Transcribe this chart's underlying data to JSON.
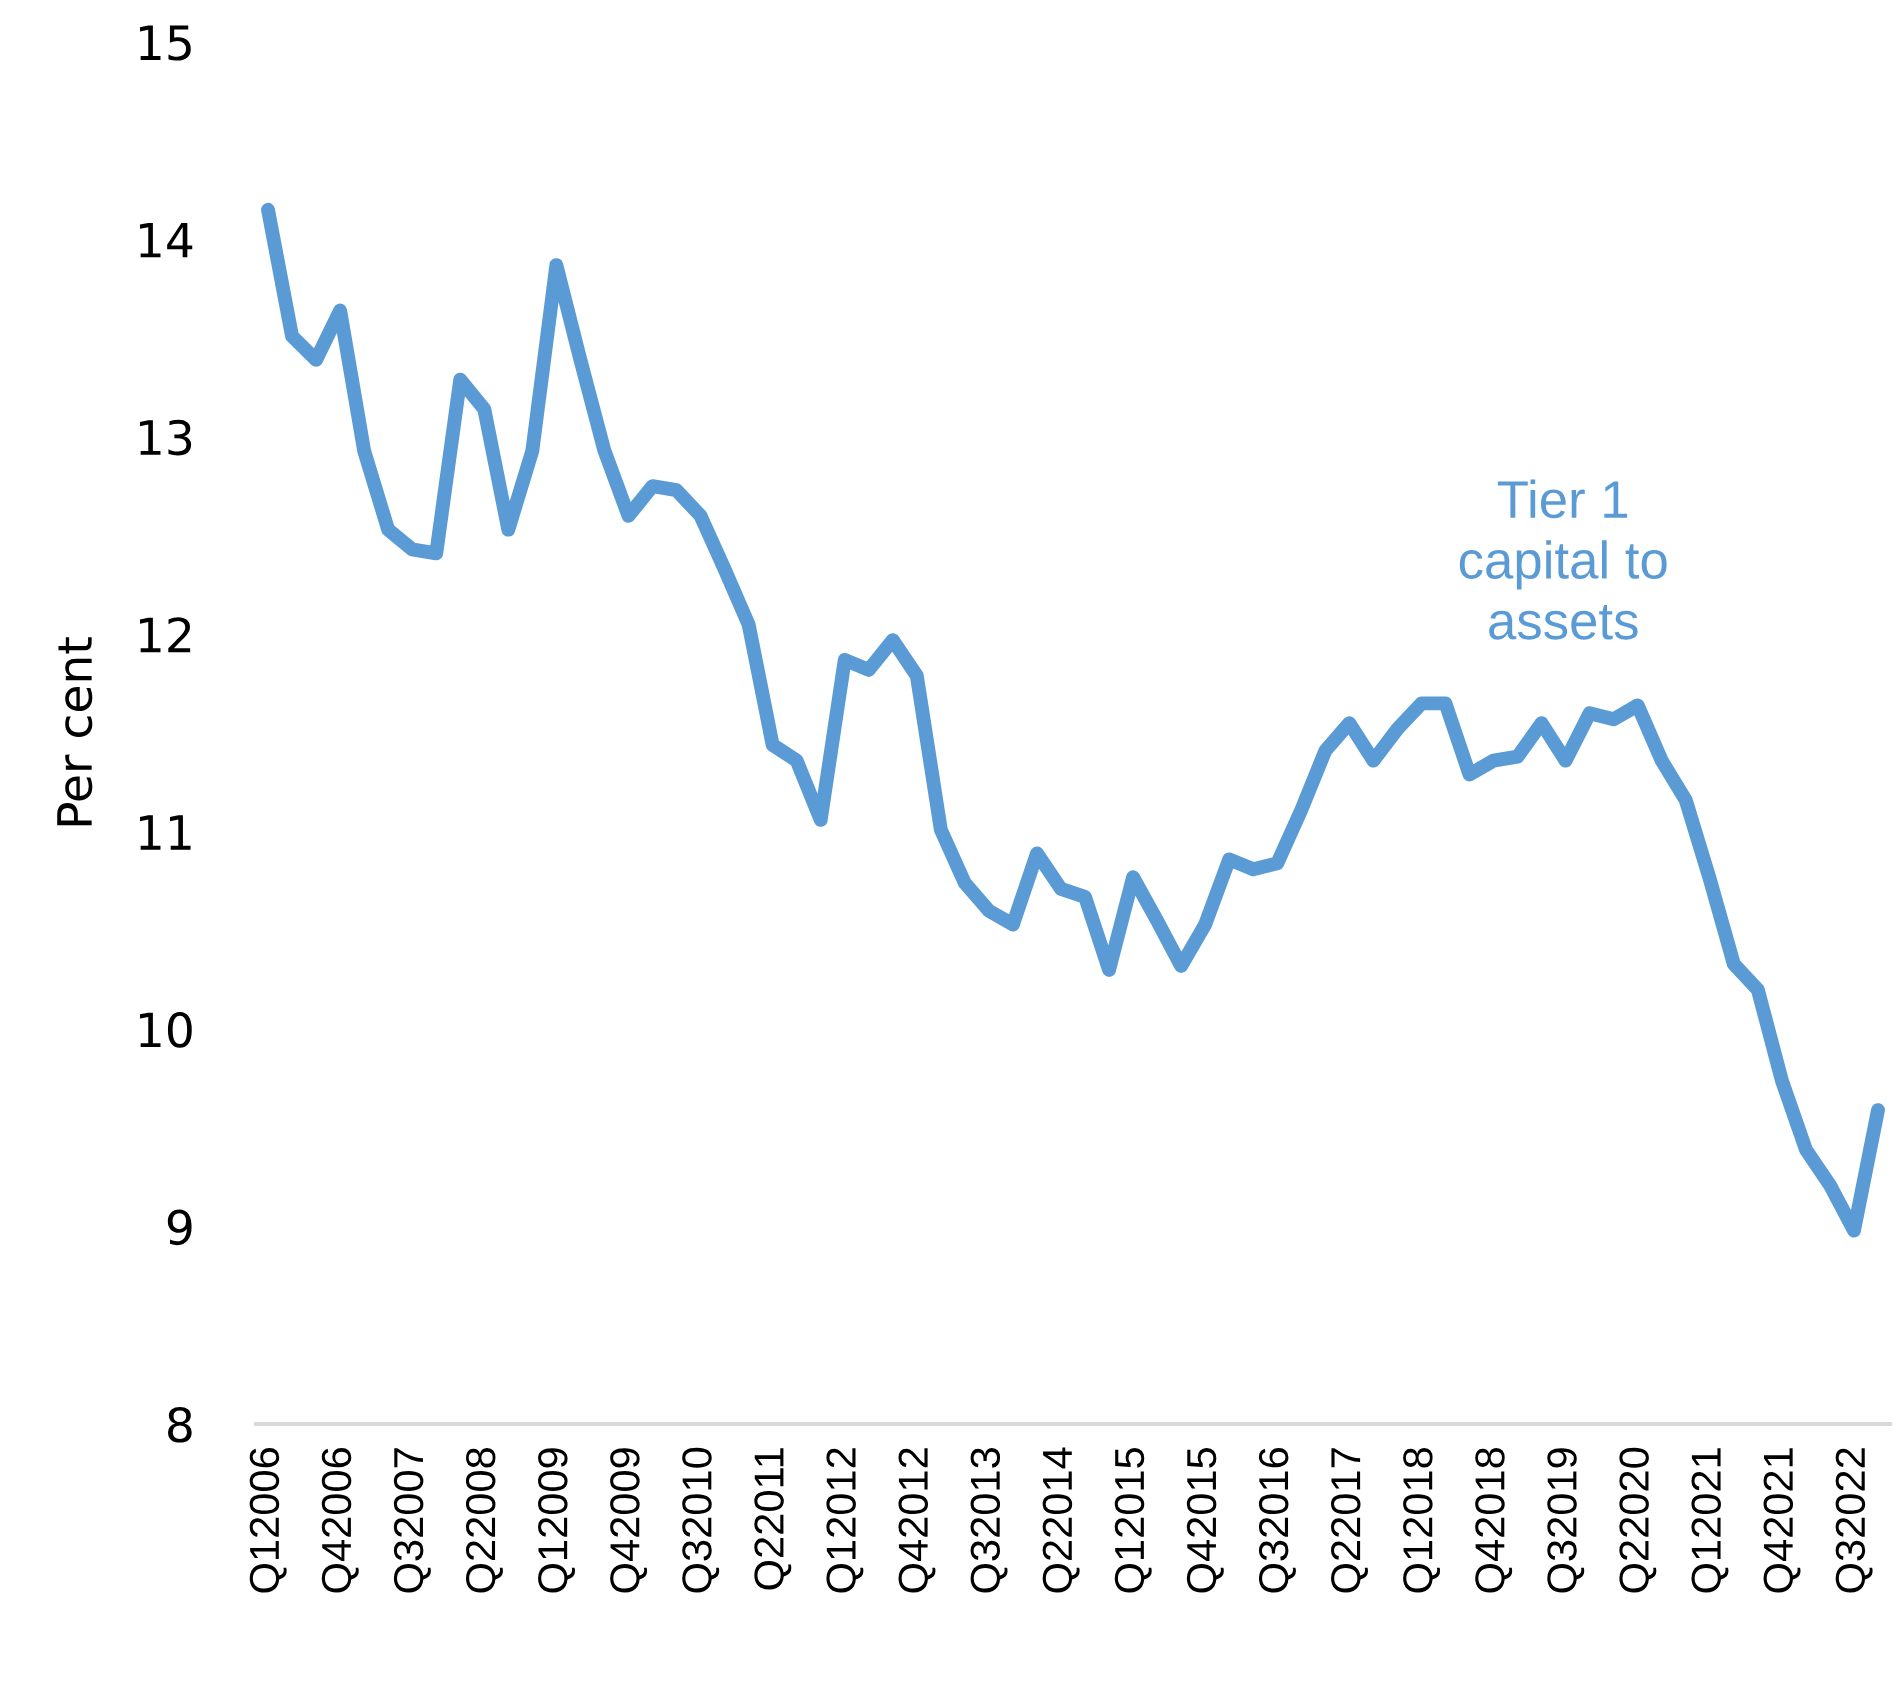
{
  "chart_data": {
    "type": "line",
    "ylabel": "Per cent",
    "categories": [
      "Q12006",
      null,
      null,
      "Q42006",
      null,
      null,
      "Q32007",
      null,
      null,
      "Q22008",
      null,
      null,
      "Q12009",
      null,
      null,
      "Q42009",
      null,
      null,
      "Q32010",
      null,
      null,
      "Q22011",
      null,
      null,
      "Q12012",
      null,
      null,
      "Q42012",
      null,
      null,
      "Q32013",
      null,
      null,
      "Q22014",
      null,
      null,
      "Q12015",
      null,
      null,
      "Q42015",
      null,
      null,
      "Q32016",
      null,
      null,
      "Q22017",
      null,
      null,
      "Q12018",
      null,
      null,
      "Q42018",
      null,
      null,
      "Q32019",
      null,
      null,
      "Q22020",
      null,
      null,
      "Q12021",
      null,
      null,
      "Q42021",
      null,
      null,
      "Q32022",
      null
    ],
    "series": [
      {
        "color": "#5b9bd5",
        "values": [
          14.15,
          13.51,
          13.39,
          13.64,
          12.93,
          12.53,
          12.43,
          12.41,
          13.29,
          13.14,
          12.53,
          12.93,
          13.87,
          13.39,
          12.93,
          12.6,
          12.75,
          12.73,
          12.6,
          12.33,
          12.05,
          11.44,
          11.36,
          11.06,
          11.87,
          11.82,
          11.97,
          11.79,
          11.01,
          10.74,
          10.6,
          10.53,
          10.89,
          10.71,
          10.67,
          10.3,
          10.77,
          10.55,
          10.32,
          10.53,
          10.86,
          10.81,
          10.84,
          11.11,
          11.41,
          11.55,
          11.36,
          11.52,
          11.65,
          11.65,
          11.29,
          11.36,
          11.38,
          11.55,
          11.36,
          11.6,
          11.57,
          11.64,
          11.36,
          11.16,
          10.76,
          10.33,
          10.2,
          9.74,
          9.39,
          9.21,
          8.98,
          9.59
        ]
      }
    ],
    "annotations": [
      "Tier 1\ncapital to\nassets"
    ],
    "ylim": [
      8,
      15
    ],
    "yticks": [
      8,
      9,
      10,
      11,
      12,
      13,
      14,
      15
    ],
    "grid": false,
    "legend": false,
    "marker": "none",
    "line_style": "solid"
  }
}
